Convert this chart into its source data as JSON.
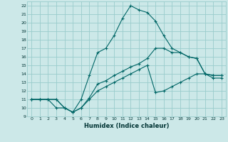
{
  "xlabel": "Humidex (Indice chaleur)",
  "bg_color": "#cce8e8",
  "grid_color": "#99cccc",
  "line_color": "#006666",
  "xlim": [
    -0.5,
    23.5
  ],
  "ylim": [
    9,
    22.5
  ],
  "xticks": [
    0,
    1,
    2,
    3,
    4,
    5,
    6,
    7,
    8,
    9,
    10,
    11,
    12,
    13,
    14,
    15,
    16,
    17,
    18,
    19,
    20,
    21,
    22,
    23
  ],
  "yticks": [
    9,
    10,
    11,
    12,
    13,
    14,
    15,
    16,
    17,
    18,
    19,
    20,
    21,
    22
  ],
  "line_main_x": [
    0,
    1,
    2,
    3,
    4,
    5,
    6,
    7,
    8,
    9,
    10,
    11,
    12,
    13,
    14,
    15,
    16,
    17,
    18,
    19,
    20,
    21,
    22,
    23
  ],
  "line_main_y": [
    11,
    11,
    11,
    10,
    10,
    9.5,
    11,
    13.8,
    16.5,
    17,
    18.5,
    20.5,
    22,
    21.5,
    21.2,
    20.2,
    18.5,
    17,
    16.5,
    16,
    15.8,
    14,
    13.8,
    13.8
  ],
  "line_top_x": [
    0,
    1,
    2,
    3,
    4,
    5,
    6,
    7,
    8,
    9,
    10,
    11,
    12,
    13,
    14,
    15,
    16,
    17,
    18,
    19,
    20,
    21,
    22,
    23
  ],
  "line_top_y": [
    11,
    11,
    11,
    11,
    10,
    9.5,
    10,
    11.2,
    12.8,
    13.2,
    13.8,
    14.3,
    14.8,
    15.2,
    15.8,
    17,
    17,
    16.5,
    16.5,
    16,
    15.8,
    14,
    13.8,
    13.8
  ],
  "line_bot_x": [
    0,
    1,
    2,
    3,
    4,
    5,
    6,
    7,
    8,
    9,
    10,
    11,
    12,
    13,
    14,
    15,
    16,
    17,
    18,
    19,
    20,
    21,
    22,
    23
  ],
  "line_bot_y": [
    11,
    11,
    11,
    11,
    10,
    9.5,
    10,
    11,
    12,
    12.5,
    13,
    13.5,
    14,
    14.5,
    15,
    11.8,
    12,
    12.5,
    13,
    13.5,
    14,
    14,
    13.5,
    13.5
  ]
}
